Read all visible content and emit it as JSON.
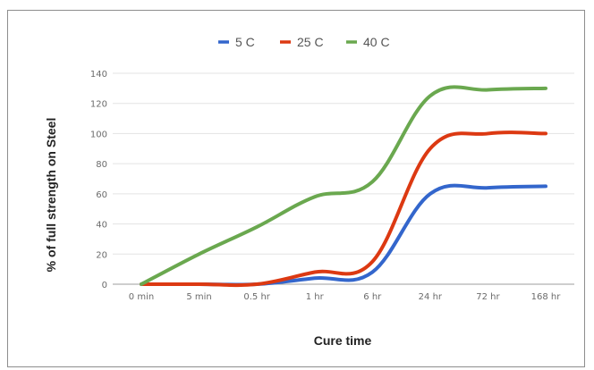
{
  "chart_data": {
    "type": "line",
    "categories": [
      "0 min",
      "5 min",
      "0.5 hr",
      "1 hr",
      "6 hr",
      "24 hr",
      "72 hr",
      "168 hr"
    ],
    "series": [
      {
        "name": "5 C",
        "color": "#3366cc",
        "values": [
          0,
          0,
          0,
          4,
          8,
          60,
          64,
          65
        ]
      },
      {
        "name": "25 C",
        "color": "#dc3912",
        "values": [
          0,
          0,
          0,
          8,
          15,
          90,
          100,
          100
        ]
      },
      {
        "name": "40 C",
        "color": "#6aa84f",
        "values": [
          0,
          20,
          38,
          58,
          68,
          125,
          129,
          130
        ]
      }
    ],
    "title": "",
    "xlabel": "Cure time",
    "ylabel": "% of full strength on Steel",
    "ylim": [
      0,
      140
    ],
    "yticks": [
      0,
      20,
      40,
      60,
      80,
      100,
      120,
      140
    ],
    "grid": true,
    "legend_position": "top-center"
  }
}
